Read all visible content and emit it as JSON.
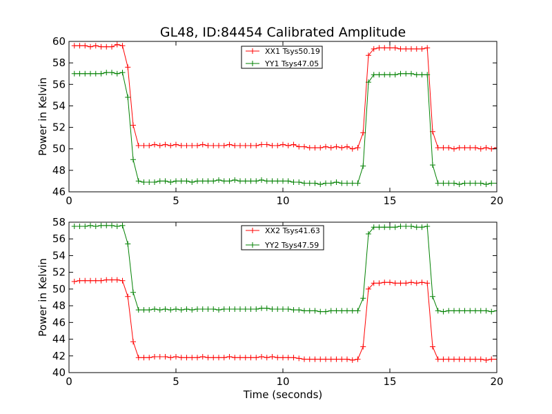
{
  "figure_title": "GL48, ID:84454 Calibrated Amplitude",
  "chart_data": [
    {
      "type": "line",
      "title": "GL48, ID:84454 Calibrated Amplitude",
      "xlabel": "",
      "ylabel": "Power in Kelvin",
      "xlim": [
        0,
        20
      ],
      "ylim": [
        46,
        60
      ],
      "xticks": [
        0,
        5,
        10,
        15,
        20
      ],
      "yticks": [
        46,
        48,
        50,
        52,
        54,
        56,
        58,
        60
      ],
      "grid": false,
      "legend_position": "top-center",
      "x": [
        0.25,
        0.5,
        0.75,
        1.0,
        1.25,
        1.5,
        1.75,
        2.0,
        2.25,
        2.5,
        2.75,
        3.0,
        3.25,
        3.5,
        3.75,
        4.0,
        4.25,
        4.5,
        4.75,
        5.0,
        5.25,
        5.5,
        5.75,
        6.0,
        6.25,
        6.5,
        6.75,
        7.0,
        7.25,
        7.5,
        7.75,
        8.0,
        8.25,
        8.5,
        8.75,
        9.0,
        9.25,
        9.5,
        9.75,
        10.0,
        10.25,
        10.5,
        10.75,
        11.0,
        11.25,
        11.5,
        11.75,
        12.0,
        12.25,
        12.5,
        12.75,
        13.0,
        13.25,
        13.5,
        13.75,
        14.0,
        14.25,
        14.5,
        14.75,
        15.0,
        15.25,
        15.5,
        15.75,
        16.0,
        16.25,
        16.5,
        16.75,
        17.0,
        17.25,
        17.5,
        17.75,
        18.0,
        18.25,
        18.5,
        18.75,
        19.0,
        19.25,
        19.5,
        19.75,
        20.0
      ],
      "series": [
        {
          "name": "XX1 Tsys50.19",
          "color": "#ff0000",
          "values": [
            59.6,
            59.6,
            59.6,
            59.5,
            59.6,
            59.5,
            59.5,
            59.5,
            59.7,
            59.6,
            57.6,
            52.2,
            50.3,
            50.3,
            50.3,
            50.4,
            50.3,
            50.4,
            50.3,
            50.4,
            50.3,
            50.3,
            50.3,
            50.3,
            50.4,
            50.3,
            50.3,
            50.3,
            50.3,
            50.4,
            50.3,
            50.3,
            50.3,
            50.3,
            50.3,
            50.4,
            50.4,
            50.3,
            50.3,
            50.4,
            50.3,
            50.4,
            50.2,
            50.2,
            50.1,
            50.1,
            50.1,
            50.2,
            50.1,
            50.2,
            50.1,
            50.2,
            50.0,
            50.1,
            51.5,
            58.7,
            59.3,
            59.4,
            59.4,
            59.4,
            59.4,
            59.3,
            59.3,
            59.3,
            59.3,
            59.3,
            59.4,
            51.6,
            50.1,
            50.1,
            50.1,
            50.0,
            50.1,
            50.1,
            50.1,
            50.1,
            50.0,
            50.1,
            50.0,
            50.1
          ]
        },
        {
          "name": "YY1 Tsys47.05",
          "color": "#008000",
          "values": [
            57.0,
            57.0,
            57.0,
            57.0,
            57.0,
            57.0,
            57.1,
            57.1,
            57.0,
            57.1,
            54.8,
            49.0,
            47.0,
            46.9,
            46.9,
            46.9,
            47.0,
            47.0,
            46.9,
            47.0,
            47.0,
            47.0,
            46.9,
            47.0,
            47.0,
            47.0,
            47.0,
            47.1,
            47.0,
            47.0,
            47.1,
            47.0,
            47.0,
            47.0,
            47.0,
            47.1,
            47.0,
            47.0,
            47.0,
            47.0,
            47.0,
            46.9,
            46.9,
            46.8,
            46.8,
            46.8,
            46.7,
            46.8,
            46.8,
            46.9,
            46.8,
            46.8,
            46.8,
            46.8,
            48.4,
            56.2,
            56.9,
            56.9,
            56.9,
            56.9,
            56.9,
            57.0,
            57.0,
            57.0,
            56.9,
            56.9,
            56.9,
            48.5,
            46.8,
            46.8,
            46.8,
            46.8,
            46.7,
            46.8,
            46.8,
            46.8,
            46.8,
            46.7,
            46.8,
            46.8
          ]
        }
      ]
    },
    {
      "type": "line",
      "title": "",
      "xlabel": "Time (seconds)",
      "ylabel": "Power in Kelvin",
      "xlim": [
        0,
        20
      ],
      "ylim": [
        40,
        58
      ],
      "xticks": [
        0,
        5,
        10,
        15,
        20
      ],
      "yticks": [
        40,
        42,
        44,
        46,
        48,
        50,
        52,
        54,
        56,
        58
      ],
      "grid": false,
      "legend_position": "top-center",
      "x": [
        0.25,
        0.5,
        0.75,
        1.0,
        1.25,
        1.5,
        1.75,
        2.0,
        2.25,
        2.5,
        2.75,
        3.0,
        3.25,
        3.5,
        3.75,
        4.0,
        4.25,
        4.5,
        4.75,
        5.0,
        5.25,
        5.5,
        5.75,
        6.0,
        6.25,
        6.5,
        6.75,
        7.0,
        7.25,
        7.5,
        7.75,
        8.0,
        8.25,
        8.5,
        8.75,
        9.0,
        9.25,
        9.5,
        9.75,
        10.0,
        10.25,
        10.5,
        10.75,
        11.0,
        11.25,
        11.5,
        11.75,
        12.0,
        12.25,
        12.5,
        12.75,
        13.0,
        13.25,
        13.5,
        13.75,
        14.0,
        14.25,
        14.5,
        14.75,
        15.0,
        15.25,
        15.5,
        15.75,
        16.0,
        16.25,
        16.5,
        16.75,
        17.0,
        17.25,
        17.5,
        17.75,
        18.0,
        18.25,
        18.5,
        18.75,
        19.0,
        19.25,
        19.5,
        19.75,
        20.0
      ],
      "series": [
        {
          "name": "XX2 Tsys41.63",
          "color": "#ff0000",
          "values": [
            50.9,
            51.0,
            51.0,
            51.0,
            51.0,
            51.0,
            51.1,
            51.1,
            51.1,
            51.0,
            49.1,
            43.7,
            41.8,
            41.8,
            41.8,
            41.9,
            41.9,
            41.9,
            41.8,
            41.9,
            41.8,
            41.8,
            41.8,
            41.8,
            41.9,
            41.8,
            41.8,
            41.8,
            41.8,
            41.9,
            41.8,
            41.8,
            41.8,
            41.8,
            41.8,
            41.9,
            41.8,
            41.9,
            41.8,
            41.8,
            41.8,
            41.8,
            41.7,
            41.6,
            41.6,
            41.6,
            41.6,
            41.6,
            41.6,
            41.6,
            41.6,
            41.6,
            41.5,
            41.6,
            43.1,
            50.0,
            50.7,
            50.7,
            50.8,
            50.8,
            50.7,
            50.7,
            50.7,
            50.8,
            50.7,
            50.8,
            50.7,
            43.1,
            41.6,
            41.6,
            41.6,
            41.6,
            41.6,
            41.6,
            41.6,
            41.6,
            41.6,
            41.5,
            41.6,
            41.6
          ]
        },
        {
          "name": "YY2 Tsys47.59",
          "color": "#008000",
          "values": [
            57.5,
            57.5,
            57.5,
            57.6,
            57.5,
            57.6,
            57.6,
            57.6,
            57.5,
            57.6,
            55.4,
            49.6,
            47.5,
            47.5,
            47.5,
            47.6,
            47.5,
            47.6,
            47.5,
            47.6,
            47.5,
            47.6,
            47.5,
            47.6,
            47.6,
            47.6,
            47.6,
            47.5,
            47.6,
            47.6,
            47.6,
            47.6,
            47.6,
            47.6,
            47.6,
            47.7,
            47.7,
            47.6,
            47.6,
            47.6,
            47.6,
            47.5,
            47.5,
            47.4,
            47.4,
            47.4,
            47.3,
            47.3,
            47.4,
            47.4,
            47.4,
            47.4,
            47.4,
            47.4,
            48.9,
            56.6,
            57.4,
            57.4,
            57.4,
            57.4,
            57.4,
            57.5,
            57.5,
            57.5,
            57.4,
            57.4,
            57.5,
            49.1,
            47.4,
            47.3,
            47.4,
            47.4,
            47.4,
            47.4,
            47.4,
            47.4,
            47.4,
            47.4,
            47.3,
            47.4
          ]
        }
      ]
    }
  ]
}
